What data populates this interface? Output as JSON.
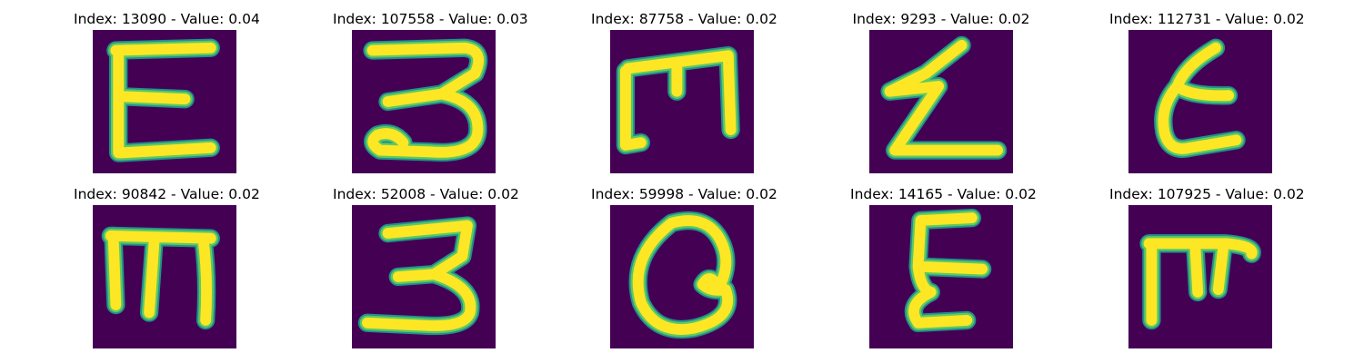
{
  "colors": {
    "background": "#440154",
    "stroke_core": "#fde725",
    "stroke_mid": "#5ec962",
    "stroke_edge": "#21918c"
  },
  "panels": [
    {
      "title": "Index: 13090 - Value: 0.04",
      "glyph": "E"
    },
    {
      "title": "Index: 107558 - Value: 0.03",
      "glyph": "3"
    },
    {
      "title": "Index: 87758 - Value: 0.02",
      "glyph": "M"
    },
    {
      "title": "Index: 9293 - Value: 0.02",
      "glyph": "Z"
    },
    {
      "title": "Index: 112731 - Value: 0.02",
      "glyph": "E"
    },
    {
      "title": "Index: 90842 - Value: 0.02",
      "glyph": "M"
    },
    {
      "title": "Index: 52008 - Value: 0.02",
      "glyph": "3"
    },
    {
      "title": "Index: 59998 - Value: 0.02",
      "glyph": "Q"
    },
    {
      "title": "Index: 14165 - Value: 0.02",
      "glyph": "E"
    },
    {
      "title": "Index: 107925 - Value: 0.02",
      "glyph": "F"
    }
  ]
}
